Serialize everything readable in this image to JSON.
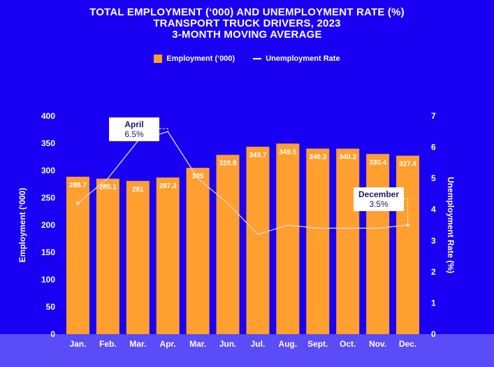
{
  "title": {
    "line1": "TOTAL EMPLOYMENT (‘000) AND UNEMPLOYMENT RATE (%)",
    "line2": "TRANSPORT TRUCK DRIVERS, 2023",
    "line3": "3-MONTH MOVING AVERAGE"
  },
  "legend": {
    "bar_label": "Employment (‘000)",
    "line_label": "Unemployment Rate"
  },
  "colors": {
    "background": "#1a00f2",
    "bar": "#ff9f30",
    "line": "#d9d9d9",
    "band": "#5a4cf6"
  },
  "chart_data": {
    "type": "bar",
    "categories": [
      "Jan.",
      "Feb.",
      "Mar.",
      "Apr.",
      "Mar.",
      "Jun.",
      "Jul.",
      "Aug.",
      "Sept.",
      "Oct.",
      "Nov.",
      "Dec."
    ],
    "series": [
      {
        "name": "Employment (‘000)",
        "type": "bar",
        "axis": "left",
        "values": [
          288.7,
          285.1,
          281,
          287.3,
          305,
          328.8,
          343.7,
          349.5,
          340.3,
          340.2,
          330.4,
          327.4
        ],
        "labels": [
          "288.7",
          "285.1",
          "281",
          "287.3",
          "305",
          "328.8",
          "343.7",
          "349.5",
          "340.3",
          "340.2",
          "330.4",
          "327.4"
        ]
      },
      {
        "name": "Unemployment Rate",
        "type": "line",
        "axis": "right",
        "values": [
          4.2,
          5.0,
          6.2,
          6.5,
          5.0,
          4.2,
          3.2,
          3.5,
          3.4,
          3.4,
          3.4,
          3.5
        ]
      }
    ],
    "ylabel": "Employment (‘000)",
    "y2label": "Unemployment Rate (%)",
    "ylim": [
      0,
      400
    ],
    "y2lim": [
      0,
      7
    ],
    "yticks": [
      "0",
      "50",
      "100",
      "150",
      "200",
      "250",
      "300",
      "350",
      "400"
    ],
    "y2ticks": [
      "0",
      "1",
      "2",
      "3",
      "4",
      "5",
      "6",
      "7"
    ],
    "grid": false,
    "legend_position": "top-center",
    "annotations": [
      {
        "month_index": 3,
        "title": "April",
        "value": "6.5%"
      },
      {
        "month_index": 11,
        "title": "December",
        "value": "3.5%"
      }
    ]
  }
}
